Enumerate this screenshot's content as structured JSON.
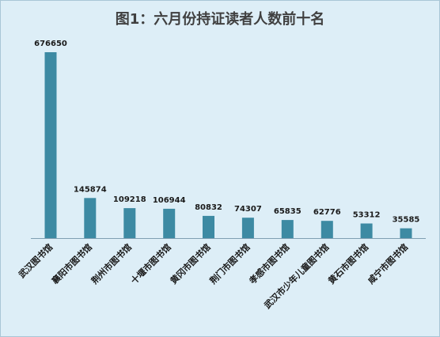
{
  "chart_data": {
    "type": "bar",
    "title": "图1：六月份持证读者人数前十名",
    "categories": [
      "武汉图书馆",
      "襄阳市图书馆",
      "荆州市图书馆",
      "十堰市图书馆",
      "黄冈市图书馆",
      "荆门市图书馆",
      "孝感市图书馆",
      "武汉市少年儿童图书馆",
      "黄石市图书馆",
      "咸宁市图书馆"
    ],
    "values": [
      676650,
      145874,
      109218,
      106944,
      80832,
      74307,
      65835,
      62776,
      53312,
      35585
    ],
    "ylim": [
      0,
      676650
    ],
    "grid": false,
    "legend": "none",
    "colors": {
      "bar": "#3d8aa3",
      "background": "#ddeef7",
      "axis": "#7f9fb2"
    }
  }
}
